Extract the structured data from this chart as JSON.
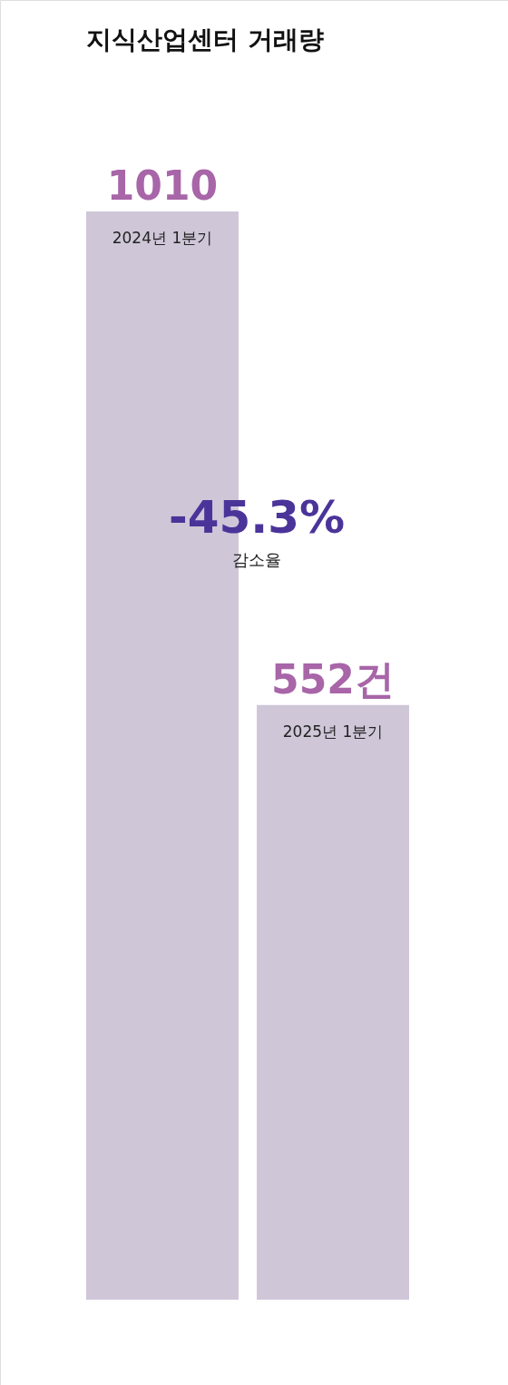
{
  "chart_data": {
    "type": "bar",
    "title": "지식산업센터 거래량",
    "categories": [
      "2024년 1분기",
      "2025년 1분기"
    ],
    "values": [
      1010,
      552
    ],
    "value_labels": [
      "1010",
      "552건"
    ],
    "color": "#cfc6d8",
    "annotations": [
      "-45.3%",
      "감소율"
    ]
  }
}
